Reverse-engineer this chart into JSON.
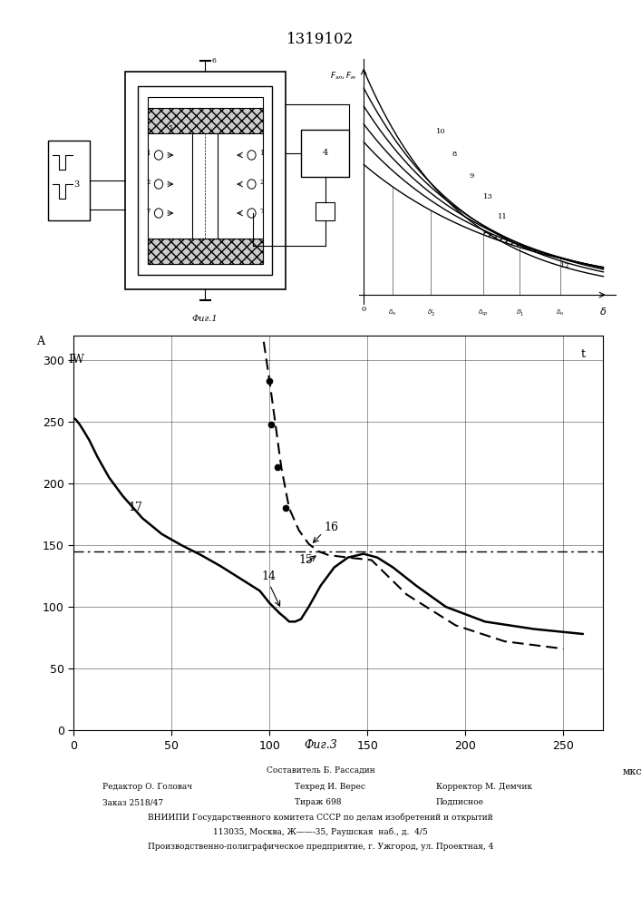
{
  "title": "1319102",
  "fig3_yticks": [
    0,
    50,
    100,
    150,
    200,
    250,
    300
  ],
  "fig3_xticks": [
    0,
    50,
    100,
    150,
    200,
    250
  ],
  "fig3_xlim": [
    0,
    270
  ],
  "fig3_ylim": [
    0,
    320
  ],
  "dash_dot_level": 145,
  "footnote_lines": [
    "Составитель Б. Рассадин",
    "Редактор О. Головач",
    "Техред И. Верес",
    "Корректор М. Демчик",
    "Заказ 2518/47",
    "Тираж 698",
    "Подписное",
    "ВНИИПИ Государственного комитета СССР по делам изобретений и открытий",
    "113035, Москва, Ж——-35, Раушская  наб., д.  4/5",
    "Производственно-полиграфическое предприятие, г. Ужгород, ул. Проектная, 4"
  ]
}
